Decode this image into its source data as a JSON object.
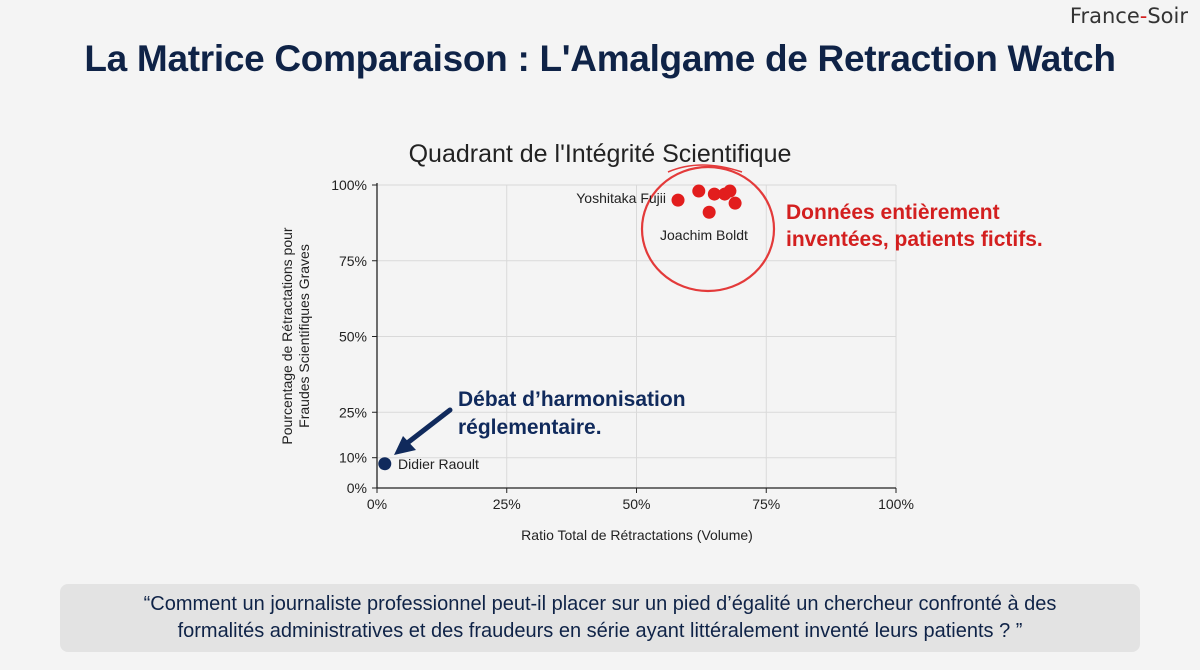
{
  "brand": {
    "name_part1": "France",
    "dash": "-",
    "name_part2": "Soir"
  },
  "page_title": "La Matrice Comparaison : L'Amalgame de Retraction Watch",
  "chart_data": {
    "type": "scatter",
    "title": "Quadrant de l'Intégrité Scientifique",
    "xlabel": "Ratio Total de Rétractations (Volume)",
    "ylabel_lines": [
      "Pourcentage de Rétractations pour",
      "Fraudes Scientifiques Graves"
    ],
    "xlim": [
      0,
      100
    ],
    "ylim": [
      0,
      100
    ],
    "x_ticks": [
      0,
      25,
      50,
      75,
      100
    ],
    "x_tick_labels": [
      "0%",
      "25%",
      "50%",
      "75%",
      "100%"
    ],
    "y_ticks": [
      0,
      10,
      25,
      50,
      75,
      100
    ],
    "y_tick_labels": [
      "0%",
      "10%",
      "25%",
      "50%",
      "75%",
      "100%"
    ],
    "grid": true,
    "series": [
      {
        "color": "#e21d1d",
        "points": [
          {
            "x": 58,
            "y": 95,
            "label": "Yoshitaka Fujii"
          },
          {
            "x": 62,
            "y": 98,
            "label": ""
          },
          {
            "x": 65,
            "y": 97,
            "label": ""
          },
          {
            "x": 67,
            "y": 97,
            "label": ""
          },
          {
            "x": 68,
            "y": 98,
            "label": ""
          },
          {
            "x": 69,
            "y": 94,
            "label": ""
          },
          {
            "x": 64,
            "y": 91,
            "label": "Joachim Boldt"
          }
        ]
      },
      {
        "color": "#102a5c",
        "points": [
          {
            "x": 1.5,
            "y": 8,
            "label": "Didier Raoult"
          }
        ]
      }
    ],
    "annotations": [
      {
        "lines": [
          "Données entièrement",
          "inventées, patients fictifs."
        ],
        "color": "#d31f1f"
      },
      {
        "lines": [
          "Débat d’harmonisation",
          "réglementaire."
        ],
        "color": "#102a5c"
      }
    ]
  },
  "quote": {
    "line1": "“Comment un journaliste professionnel peut-il placer sur un pied d’égalité un chercheur confronté à des",
    "line2": "formalités administratives et des fraudeurs en série ayant littéralement inventé leurs patients ? ”"
  }
}
